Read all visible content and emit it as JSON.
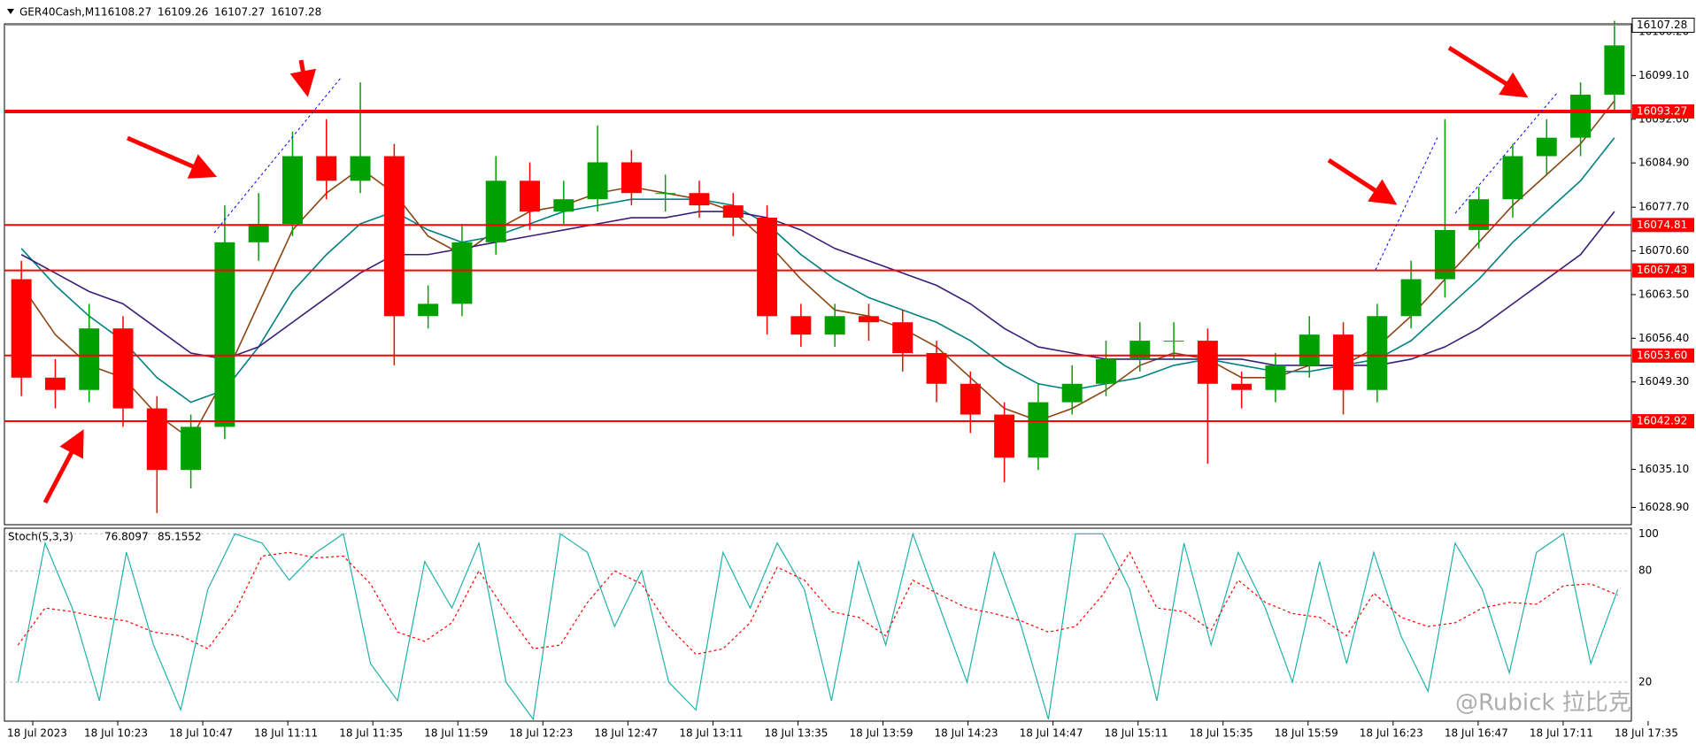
{
  "chart_data": {
    "type": "candlestick",
    "symbol": "GER40Cash,M1",
    "header_values": [
      16108.27,
      16109.26,
      16107.27,
      16107.28
    ],
    "current_price": 16107.28,
    "ylim": [
      16026.1,
      16107.5
    ],
    "yticks": [
      {
        "value": 16106.2,
        "label": "16106.20"
      },
      {
        "value": 16099.1,
        "label": "16099.10"
      },
      {
        "value": 16092.0,
        "label": "16092.00"
      },
      {
        "value": 16084.9,
        "label": "16084.90"
      },
      {
        "value": 16077.7,
        "label": "16077.70"
      },
      {
        "value": 16070.6,
        "label": "16070.60"
      },
      {
        "value": 16063.5,
        "label": "16063.50"
      },
      {
        "value": 16056.4,
        "label": "16056.40"
      },
      {
        "value": 16049.3,
        "label": "16049.30"
      },
      {
        "value": 16035.1,
        "label": "16035.10"
      },
      {
        "value": 16028.9,
        "label": "16028.90"
      }
    ],
    "levels": [
      16093.27,
      16074.81,
      16067.43,
      {
        "value": 16053.6,
        "label": "16053.60"
      },
      16042.92
    ],
    "level_color": "#ff0000",
    "up_color": "#00a000",
    "down_color": "#ff0000",
    "time_labels": [
      "18 Jul 2023",
      "18 Jul 10:23",
      "18 Jul 10:47",
      "18 Jul 11:11",
      "18 Jul 11:35",
      "18 Jul 11:59",
      "18 Jul 12:23",
      "18 Jul 12:47",
      "18 Jul 13:11",
      "18 Jul 13:35",
      "18 Jul 13:59",
      "18 Jul 14:23",
      "18 Jul 14:47",
      "18 Jul 15:11",
      "18 Jul 15:35",
      "18 Jul 15:59",
      "18 Jul 16:23",
      "18 Jul 16:47",
      "18 Jul 17:11",
      "18 Jul 17:35"
    ],
    "open": [
      16066,
      16050,
      16048,
      16058,
      16045,
      16035,
      16042,
      16072,
      16075,
      16086,
      16082,
      16086,
      16060,
      16062,
      16072,
      16082,
      16077,
      16079,
      16085,
      16080,
      16080,
      16078,
      16076,
      16060,
      16057,
      16060,
      16059,
      16054,
      16049,
      16044,
      16037,
      16046,
      16049,
      16053,
      16056,
      16056,
      16049,
      16048,
      16052,
      16057,
      16048,
      16060,
      16066,
      16074,
      16079,
      16086,
      16089,
      16096
    ],
    "high": [
      16069,
      16053,
      16062,
      16060,
      16047,
      16044,
      16078,
      16080,
      16090,
      16092,
      16098,
      16088,
      16065,
      16075,
      16086,
      16085,
      16082,
      16091,
      16087,
      16083,
      16082,
      16080,
      16078,
      16062,
      16062,
      16062,
      16061,
      16056,
      16051,
      16046,
      16049,
      16052,
      16056,
      16059,
      16059,
      16058,
      16051,
      16054,
      16060,
      16059,
      16062,
      16069,
      16092,
      16081,
      16088,
      16092,
      16098,
      16108
    ],
    "low": [
      16047,
      16045,
      16046,
      16042,
      16028,
      16032,
      16040,
      16069,
      16073,
      16079,
      16080,
      16052,
      16058,
      16060,
      16070,
      16074,
      16075,
      16077,
      16078,
      16077,
      16076,
      16073,
      16057,
      16055,
      16055,
      16056,
      16051,
      16046,
      16041,
      16033,
      16035,
      16044,
      16047,
      16051,
      16053,
      16036,
      16045,
      16046,
      16050,
      16044,
      16046,
      16058,
      16063,
      16071,
      16076,
      16083,
      16086,
      16093
    ],
    "close": [
      16050,
      16048,
      16058,
      16045,
      16035,
      16042,
      16072,
      16075,
      16086,
      16082,
      16086,
      16060,
      16062,
      16072,
      16082,
      16077,
      16079,
      16085,
      16080,
      16080,
      16078,
      16076,
      16060,
      16057,
      16060,
      16059,
      16054,
      16049,
      16044,
      16037,
      16046,
      16049,
      16053,
      16056,
      16056,
      16049,
      16048,
      16052,
      16057,
      16048,
      16060,
      16066,
      16074,
      16079,
      16086,
      16089,
      16096,
      16104
    ],
    "moving_averages": [
      {
        "color": "#8b4513",
        "values": [
          16065,
          16057,
          16052,
          16050,
          16044,
          16040,
          16050,
          16062,
          16074,
          16080,
          16084,
          16080,
          16073,
          16070,
          16074,
          16077,
          16078,
          16080,
          16081,
          16080,
          16079,
          16077,
          16072,
          16066,
          16061,
          16060,
          16058,
          16055,
          16050,
          16045,
          16043,
          16045,
          16048,
          16052,
          16054,
          16053,
          16050,
          16050,
          16052,
          16052,
          16055,
          16060,
          16066,
          16072,
          16078,
          16083,
          16088,
          16095
        ]
      },
      {
        "color": "#008080",
        "values": [
          16071,
          16065,
          16060,
          16056,
          16050,
          16046,
          16048,
          16055,
          16064,
          16070,
          16075,
          16077,
          16074,
          16072,
          16073,
          16075,
          16077,
          16078,
          16079,
          16079,
          16079,
          16078,
          16075,
          16070,
          16066,
          16063,
          16061,
          16059,
          16056,
          16052,
          16049,
          16048,
          16049,
          16050,
          16052,
          16053,
          16052,
          16051,
          16051,
          16052,
          16053,
          16056,
          16061,
          16066,
          16072,
          16077,
          16082,
          16089
        ]
      },
      {
        "color": "#3c1e78",
        "values": [
          16070,
          16067,
          16064,
          16062,
          16058,
          16054,
          16053,
          16055,
          16059,
          16063,
          16067,
          16070,
          16070,
          16071,
          16072,
          16073,
          16074,
          16075,
          16076,
          16076,
          16077,
          16077,
          16076,
          16074,
          16071,
          16069,
          16067,
          16065,
          16062,
          16058,
          16055,
          16054,
          16053,
          16053,
          16053,
          16053,
          16053,
          16052,
          16052,
          16052,
          16052,
          16053,
          16055,
          16058,
          16062,
          16066,
          16070,
          16077
        ]
      }
    ],
    "stochastic": {
      "title": "Stoch(5,3,3)",
      "readings": [
        76.8097,
        85.1552
      ],
      "ylim": [
        -1,
        103
      ],
      "yticks": [
        100,
        80,
        20
      ],
      "main_color": "#20b2aa",
      "signal_color": "#ff0000",
      "main": [
        20,
        95,
        60,
        10,
        90,
        40,
        5,
        70,
        100,
        95,
        75,
        90,
        100,
        30,
        10,
        85,
        60,
        95,
        20,
        0,
        100,
        90,
        50,
        80,
        20,
        5,
        90,
        60,
        95,
        70,
        10,
        85,
        40,
        100,
        60,
        20,
        90,
        50,
        0,
        100,
        100,
        70,
        10,
        95,
        40,
        90,
        60,
        20,
        85,
        30,
        90,
        45,
        15,
        95,
        70,
        25,
        90,
        100,
        30,
        70
      ],
      "signal": [
        40,
        60,
        58,
        55,
        53,
        47,
        45,
        38,
        58,
        88,
        90,
        87,
        88,
        73,
        47,
        42,
        52,
        80,
        58,
        38,
        40,
        63,
        80,
        73,
        50,
        35,
        38,
        52,
        82,
        75,
        58,
        55,
        45,
        75,
        67,
        60,
        57,
        53,
        47,
        50,
        67,
        90,
        60,
        58,
        48,
        75,
        63,
        57,
        55,
        45,
        68,
        55,
        50,
        52,
        60,
        63,
        62,
        72,
        73,
        67
      ]
    },
    "watermark": "@Rubick 拉比克"
  }
}
